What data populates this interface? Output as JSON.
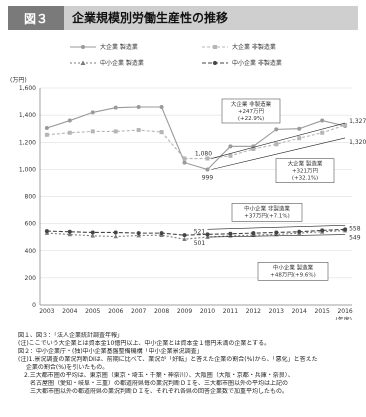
{
  "header": {
    "fig_label": "図３",
    "title": "企業規模別労働生産性の推移"
  },
  "legend": {
    "large_mfg": "大企業 製造業",
    "large_nonmfg": "大企業 非製造業",
    "sme_mfg": "中小企業 製造業",
    "sme_nonmfg": "中小企業 非製造業"
  },
  "unit_label": "(万円)",
  "year_unit": "(年度)",
  "chart_data": {
    "type": "line",
    "x": [
      "2003",
      "2004",
      "2005",
      "2006",
      "2007",
      "2008",
      "2009",
      "2010",
      "2011",
      "2012",
      "2013",
      "2014",
      "2015",
      "2016"
    ],
    "ylim": [
      0,
      1600
    ],
    "yticks": [
      "0",
      "200",
      "400",
      "600",
      "800",
      "1,000",
      "1,200",
      "1,400",
      "1,600"
    ],
    "series": [
      {
        "name": "大企業 製造業",
        "color": "#9a9a9a",
        "values": [
          1305,
          1360,
          1420,
          1455,
          1460,
          1460,
          1050,
          999,
          1170,
          1170,
          1295,
          1300,
          1360,
          1320
        ]
      },
      {
        "name": "大企業 非製造業",
        "color": "#b5b5b5",
        "values": [
          1255,
          1270,
          1280,
          1280,
          1290,
          1275,
          1080,
          1080,
          1100,
          1150,
          1185,
          1230,
          1270,
          1327
        ]
      },
      {
        "name": "中小企業 製造業",
        "color": "#7a7a7a",
        "values": [
          530,
          520,
          510,
          505,
          512,
          515,
          485,
          501,
          510,
          515,
          520,
          530,
          540,
          549
        ]
      },
      {
        "name": "中小企業 非製造業",
        "color": "#444444",
        "values": [
          545,
          540,
          535,
          535,
          530,
          530,
          515,
          521,
          525,
          530,
          535,
          540,
          550,
          558
        ]
      }
    ],
    "value_labels": {
      "large_nonmfg_2009": "1,080",
      "large_nonmfg_2016": "1,327",
      "large_mfg_2009": "999",
      "large_mfg_2016": "1,320",
      "sme_nonmfg_2009": "521",
      "sme_nonmfg_2016": "558",
      "sme_mfg_2009": "501",
      "sme_mfg_2016": "549"
    },
    "annotations": [
      {
        "lines": [
          "大企業 非製造業",
          "+247万円",
          "(+22.9%)"
        ]
      },
      {
        "lines": [
          "大企業 製造業",
          "+321万円",
          "(+32.1%)"
        ]
      },
      {
        "lines": [
          "中小企業 非製造業",
          "+37万円(+7.1%)"
        ]
      },
      {
        "lines": [
          "中小企業 製造業",
          "+48万円(+9.6%)"
        ]
      }
    ]
  },
  "notes": [
    "図１、図３：「法人企業統計調査年報」",
    "(注)ここでいう大企業とは資本金10億円以上、中小企業とは資本金１億円未満の企業とする。",
    "図２：中小企業庁・(独)中小企業基盤整備機構「中小企業景況調査」",
    "(注)1.景況調査の業況判断DIは、前期に比べて、業況が「好転」と答えた企業の割合(%)から、「悪化」と答えた",
    "　 企業の割合(%)を引いたもの。",
    "　2.三大都市圏の平均は、東京圏（東京・埼玉・千葉・神奈川）、大阪圏（大阪・京都・兵庫・奈良）、",
    "　　名古屋圏（愛知・岐阜・三重）の都道府県毎の業況判断ＤＩを、三大都市圏以外の平均は上記の",
    "　　三大都市圏以外の都道府県の業況判断ＤＩを、それぞれ各県の回答企業数で加重平均したもの。"
  ]
}
